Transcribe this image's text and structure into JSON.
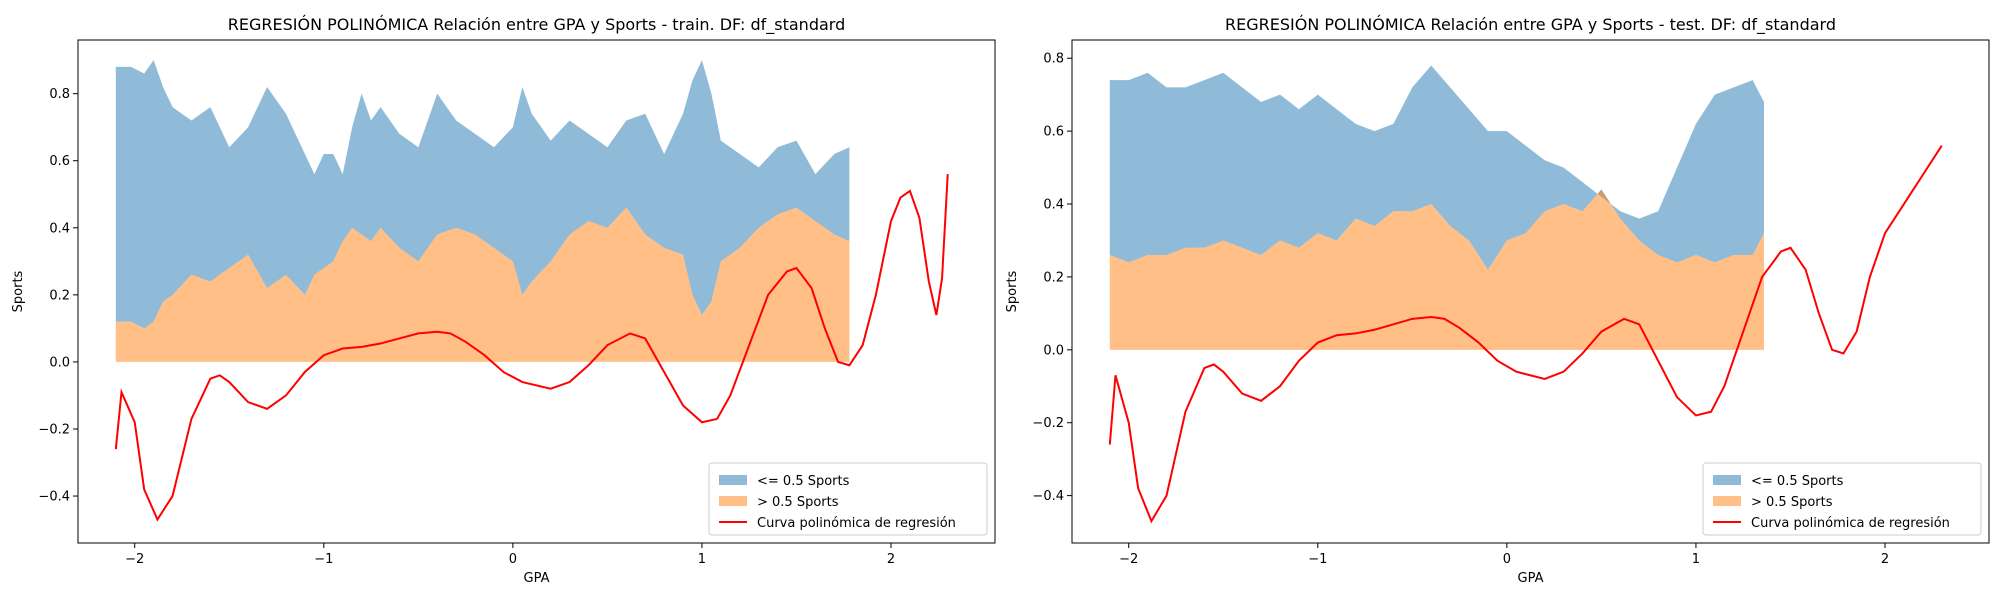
{
  "chart_data": [
    {
      "type": "area",
      "title": "REGRESIÓN POLINÓMICA Relación entre GPA y Sports - train. DF: df_standard",
      "xlabel": "GPA",
      "ylabel": "Sports",
      "xlim": [
        -2.3,
        2.55
      ],
      "ylim": [
        -0.54,
        0.96
      ],
      "xticks": [
        -2,
        -1,
        0,
        1,
        2
      ],
      "xtick_labels": [
        "−2",
        "−1",
        "0",
        "1",
        "2"
      ],
      "yticks": [
        -0.4,
        -0.2,
        0.0,
        0.2,
        0.4,
        0.6,
        0.8
      ],
      "ytick_labels": [
        "−0.4",
        "−0.2",
        "0.0",
        "0.2",
        "0.4",
        "0.6",
        "0.8"
      ],
      "legend_position": "lower-right",
      "grid": false,
      "series": [
        {
          "name": "<= 0.5 Sports",
          "kind": "fill_between",
          "color": "#1f77b4",
          "alpha": 0.5,
          "x": [
            -2.1,
            -2.02,
            -1.95,
            -1.9,
            -1.85,
            -1.8,
            -1.7,
            -1.6,
            -1.5,
            -1.4,
            -1.3,
            -1.2,
            -1.1,
            -1.05,
            -1.0,
            -0.95,
            -0.9,
            -0.85,
            -0.8,
            -0.75,
            -0.7,
            -0.6,
            -0.5,
            -0.4,
            -0.3,
            -0.2,
            -0.1,
            0.0,
            0.05,
            0.1,
            0.2,
            0.3,
            0.4,
            0.5,
            0.6,
            0.7,
            0.8,
            0.9,
            0.95,
            1.0,
            1.05,
            1.1,
            1.2,
            1.3,
            1.4,
            1.5,
            1.6,
            1.7,
            1.78
          ],
          "y_lower": [
            0.12,
            0.12,
            0.1,
            0.12,
            0.18,
            0.2,
            0.26,
            0.24,
            0.28,
            0.32,
            0.22,
            0.26,
            0.2,
            0.26,
            0.28,
            0.3,
            0.36,
            0.4,
            0.38,
            0.36,
            0.4,
            0.34,
            0.3,
            0.38,
            0.4,
            0.38,
            0.34,
            0.3,
            0.2,
            0.24,
            0.3,
            0.38,
            0.42,
            0.4,
            0.46,
            0.38,
            0.34,
            0.32,
            0.2,
            0.14,
            0.18,
            0.3,
            0.34,
            0.4,
            0.44,
            0.46,
            0.42,
            0.38,
            0.36
          ],
          "y_upper": [
            0.88,
            0.88,
            0.86,
            0.9,
            0.82,
            0.76,
            0.72,
            0.76,
            0.64,
            0.7,
            0.82,
            0.74,
            0.62,
            0.56,
            0.62,
            0.62,
            0.56,
            0.7,
            0.8,
            0.72,
            0.76,
            0.68,
            0.64,
            0.8,
            0.72,
            0.68,
            0.64,
            0.7,
            0.82,
            0.74,
            0.66,
            0.72,
            0.68,
            0.64,
            0.72,
            0.74,
            0.62,
            0.74,
            0.84,
            0.9,
            0.8,
            0.66,
            0.62,
            0.58,
            0.64,
            0.66,
            0.56,
            0.62,
            0.64
          ]
        },
        {
          "name": "> 0.5 Sports",
          "kind": "fill_between",
          "color": "#ff7f0e",
          "alpha": 0.5,
          "x": [
            -2.1,
            -2.02,
            -1.95,
            -1.9,
            -1.85,
            -1.8,
            -1.7,
            -1.6,
            -1.5,
            -1.4,
            -1.3,
            -1.2,
            -1.1,
            -1.05,
            -1.0,
            -0.95,
            -0.9,
            -0.85,
            -0.8,
            -0.75,
            -0.7,
            -0.6,
            -0.5,
            -0.4,
            -0.3,
            -0.2,
            -0.1,
            0.0,
            0.05,
            0.1,
            0.2,
            0.3,
            0.4,
            0.5,
            0.6,
            0.7,
            0.8,
            0.9,
            0.95,
            1.0,
            1.05,
            1.1,
            1.2,
            1.3,
            1.4,
            1.5,
            1.6,
            1.7,
            1.78
          ],
          "y_lower": [
            0.0,
            0.0,
            0.0,
            0.0,
            0.0,
            0.0,
            0.0,
            0.0,
            0.0,
            0.0,
            0.0,
            0.0,
            0.0,
            0.0,
            0.0,
            0.0,
            0.0,
            0.0,
            0.0,
            0.0,
            0.0,
            0.0,
            0.0,
            0.0,
            0.0,
            0.0,
            0.0,
            0.0,
            0.0,
            0.0,
            0.0,
            0.0,
            0.0,
            0.0,
            0.0,
            0.0,
            0.0,
            0.0,
            0.0,
            0.0,
            0.0,
            0.0,
            0.0,
            0.0,
            0.0,
            0.0,
            0.0,
            0.0,
            0.0
          ],
          "y_upper": [
            0.12,
            0.12,
            0.1,
            0.12,
            0.18,
            0.2,
            0.26,
            0.24,
            0.28,
            0.32,
            0.22,
            0.26,
            0.2,
            0.26,
            0.28,
            0.3,
            0.36,
            0.4,
            0.38,
            0.36,
            0.4,
            0.34,
            0.3,
            0.38,
            0.4,
            0.38,
            0.34,
            0.3,
            0.2,
            0.24,
            0.3,
            0.38,
            0.42,
            0.4,
            0.46,
            0.38,
            0.34,
            0.32,
            0.2,
            0.14,
            0.18,
            0.3,
            0.34,
            0.4,
            0.44,
            0.46,
            0.42,
            0.38,
            0.36
          ]
        },
        {
          "name": "Curva polinómica de regresión",
          "kind": "line",
          "color": "#ff0000",
          "x": [
            -2.1,
            -2.07,
            -2.0,
            -1.95,
            -1.88,
            -1.8,
            -1.7,
            -1.6,
            -1.55,
            -1.5,
            -1.4,
            -1.3,
            -1.2,
            -1.1,
            -1.0,
            -0.9,
            -0.8,
            -0.7,
            -0.6,
            -0.5,
            -0.4,
            -0.33,
            -0.25,
            -0.15,
            -0.05,
            0.05,
            0.2,
            0.3,
            0.4,
            0.5,
            0.62,
            0.7,
            0.8,
            0.9,
            1.0,
            1.08,
            1.15,
            1.25,
            1.35,
            1.45,
            1.5,
            1.58,
            1.65,
            1.72,
            1.78,
            1.85,
            1.92,
            2.0,
            2.05,
            2.1,
            2.15,
            2.2,
            2.24,
            2.27,
            2.3
          ],
          "y": [
            -0.26,
            -0.09,
            -0.18,
            -0.38,
            -0.47,
            -0.4,
            -0.17,
            -0.05,
            -0.04,
            -0.06,
            -0.12,
            -0.14,
            -0.1,
            -0.03,
            0.02,
            0.04,
            0.045,
            0.055,
            0.07,
            0.085,
            0.09,
            0.085,
            0.06,
            0.02,
            -0.03,
            -0.06,
            -0.08,
            -0.06,
            -0.01,
            0.05,
            0.085,
            0.07,
            -0.03,
            -0.13,
            -0.18,
            -0.17,
            -0.1,
            0.05,
            0.2,
            0.27,
            0.28,
            0.22,
            0.1,
            0.0,
            -0.01,
            0.05,
            0.2,
            0.42,
            0.49,
            0.51,
            0.43,
            0.24,
            0.14,
            0.25,
            0.56
          ]
        }
      ]
    },
    {
      "type": "area",
      "title": "REGRESIÓN POLINÓMICA Relación entre GPA y Sports - test. DF: df_standard",
      "xlabel": "GPA",
      "ylabel": "Sports",
      "xlim": [
        -2.3,
        2.55
      ],
      "ylim": [
        -0.53,
        0.85
      ],
      "xticks": [
        -2,
        -1,
        0,
        1,
        2
      ],
      "xtick_labels": [
        "−2",
        "−1",
        "0",
        "1",
        "2"
      ],
      "yticks": [
        -0.4,
        -0.2,
        0.0,
        0.2,
        0.4,
        0.6,
        0.8
      ],
      "ytick_labels": [
        "−0.4",
        "−0.2",
        "0.0",
        "0.2",
        "0.4",
        "0.6",
        "0.8"
      ],
      "legend_position": "lower-right",
      "grid": false,
      "series": [
        {
          "name": "<= 0.5 Sports",
          "kind": "fill_between",
          "color": "#1f77b4",
          "alpha": 0.5,
          "x": [
            -2.1,
            -2.0,
            -1.9,
            -1.8,
            -1.7,
            -1.6,
            -1.5,
            -1.4,
            -1.3,
            -1.2,
            -1.1,
            -1.0,
            -0.9,
            -0.8,
            -0.7,
            -0.6,
            -0.5,
            -0.4,
            -0.3,
            -0.2,
            -0.1,
            0.0,
            0.1,
            0.2,
            0.3,
            0.4,
            0.5,
            0.6,
            0.7,
            0.8,
            0.9,
            1.0,
            1.1,
            1.2,
            1.3,
            1.36
          ],
          "y_lower": [
            0.26,
            0.24,
            0.26,
            0.26,
            0.28,
            0.28,
            0.3,
            0.28,
            0.26,
            0.3,
            0.28,
            0.32,
            0.3,
            0.36,
            0.34,
            0.38,
            0.38,
            0.4,
            0.34,
            0.3,
            0.22,
            0.3,
            0.32,
            0.38,
            0.4,
            0.38,
            0.44,
            0.36,
            0.3,
            0.26,
            0.24,
            0.26,
            0.24,
            0.26,
            0.26,
            0.32
          ],
          "y_upper": [
            0.74,
            0.74,
            0.76,
            0.72,
            0.72,
            0.74,
            0.76,
            0.72,
            0.68,
            0.7,
            0.66,
            0.7,
            0.66,
            0.62,
            0.6,
            0.62,
            0.72,
            0.78,
            0.72,
            0.66,
            0.6,
            0.6,
            0.56,
            0.52,
            0.5,
            0.46,
            0.42,
            0.38,
            0.36,
            0.38,
            0.5,
            0.62,
            0.7,
            0.72,
            0.74,
            0.68
          ]
        },
        {
          "name": "> 0.5 Sports",
          "kind": "fill_between",
          "color": "#ff7f0e",
          "alpha": 0.5,
          "x": [
            -2.1,
            -2.0,
            -1.9,
            -1.8,
            -1.7,
            -1.6,
            -1.5,
            -1.4,
            -1.3,
            -1.2,
            -1.1,
            -1.0,
            -0.9,
            -0.8,
            -0.7,
            -0.6,
            -0.5,
            -0.4,
            -0.3,
            -0.2,
            -0.1,
            0.0,
            0.1,
            0.2,
            0.3,
            0.4,
            0.5,
            0.6,
            0.7,
            0.8,
            0.9,
            1.0,
            1.1,
            1.2,
            1.3,
            1.36
          ],
          "y_lower": [
            0.0,
            0.0,
            0.0,
            0.0,
            0.0,
            0.0,
            0.0,
            0.0,
            0.0,
            0.0,
            0.0,
            0.0,
            0.0,
            0.0,
            0.0,
            0.0,
            0.0,
            0.0,
            0.0,
            0.0,
            0.0,
            0.0,
            0.0,
            0.0,
            0.0,
            0.0,
            0.0,
            0.0,
            0.0,
            0.0,
            0.0,
            0.0,
            0.0,
            0.0,
            0.0,
            0.0
          ],
          "y_upper": [
            0.26,
            0.24,
            0.26,
            0.26,
            0.28,
            0.28,
            0.3,
            0.28,
            0.26,
            0.3,
            0.28,
            0.32,
            0.3,
            0.36,
            0.34,
            0.38,
            0.38,
            0.4,
            0.34,
            0.3,
            0.22,
            0.3,
            0.32,
            0.38,
            0.4,
            0.38,
            0.44,
            0.36,
            0.3,
            0.26,
            0.24,
            0.26,
            0.24,
            0.26,
            0.26,
            0.32
          ]
        },
        {
          "name": "Curva polinómica de regresión",
          "kind": "line",
          "color": "#ff0000",
          "x": [
            -2.1,
            -2.07,
            -2.0,
            -1.95,
            -1.88,
            -1.8,
            -1.7,
            -1.6,
            -1.55,
            -1.5,
            -1.4,
            -1.3,
            -1.2,
            -1.1,
            -1.0,
            -0.9,
            -0.8,
            -0.7,
            -0.6,
            -0.5,
            -0.4,
            -0.33,
            -0.25,
            -0.15,
            -0.05,
            0.05,
            0.2,
            0.3,
            0.4,
            0.5,
            0.62,
            0.7,
            0.8,
            0.9,
            1.0,
            1.08,
            1.15,
            1.25,
            1.35,
            1.45,
            1.5,
            1.58,
            1.65,
            1.72,
            1.78,
            1.85,
            1.92,
            2.0,
            2.1,
            2.2,
            2.3
          ],
          "y": [
            -0.26,
            -0.07,
            -0.2,
            -0.38,
            -0.47,
            -0.4,
            -0.17,
            -0.05,
            -0.04,
            -0.06,
            -0.12,
            -0.14,
            -0.1,
            -0.03,
            0.02,
            0.04,
            0.045,
            0.055,
            0.07,
            0.085,
            0.09,
            0.085,
            0.06,
            0.02,
            -0.03,
            -0.06,
            -0.08,
            -0.06,
            -0.01,
            0.05,
            0.085,
            0.07,
            -0.03,
            -0.13,
            -0.18,
            -0.17,
            -0.1,
            0.05,
            0.2,
            0.27,
            0.28,
            0.22,
            0.1,
            0.0,
            -0.01,
            0.05,
            0.2,
            0.32,
            0.4,
            0.48,
            0.56
          ]
        }
      ]
    }
  ]
}
